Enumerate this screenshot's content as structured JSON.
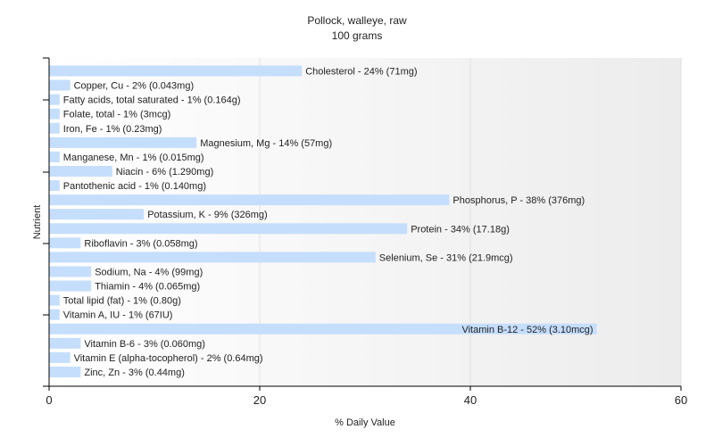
{
  "chart_data": {
    "type": "bar",
    "orientation": "horizontal",
    "title": "Pollock, walleye, raw",
    "subtitle": "100 grams",
    "xlabel": "% Daily Value",
    "ylabel": "Nutrient",
    "xlim": [
      0,
      60
    ],
    "xticks": [
      "0",
      "20",
      "40",
      "60"
    ],
    "grid": true,
    "bar_color": "#c5defc",
    "categories": [
      "Cholesterol",
      "Copper, Cu",
      "Fatty acids, total saturated",
      "Folate, total",
      "Iron, Fe",
      "Magnesium, Mg",
      "Manganese, Mn",
      "Niacin",
      "Pantothenic acid",
      "Phosphorus, P",
      "Potassium, K",
      "Protein",
      "Riboflavin",
      "Selenium, Se",
      "Sodium, Na",
      "Thiamin",
      "Total lipid (fat)",
      "Vitamin A, IU",
      "Vitamin B-12",
      "Vitamin B-6",
      "Vitamin E (alpha-tocopherol)",
      "Zinc, Zn"
    ],
    "values": [
      24,
      2,
      1,
      1,
      1,
      14,
      1,
      6,
      1,
      38,
      9,
      34,
      3,
      31,
      4,
      4,
      1,
      1,
      52,
      3,
      2,
      3
    ],
    "labels": [
      "Cholesterol - 24% (71mg)",
      "Copper, Cu - 2% (0.043mg)",
      "Fatty acids, total saturated - 1% (0.164g)",
      "Folate, total - 1% (3mcg)",
      "Iron, Fe - 1% (0.23mg)",
      "Magnesium, Mg - 14% (57mg)",
      "Manganese, Mn - 1% (0.015mg)",
      "Niacin - 6% (1.290mg)",
      "Pantothenic acid - 1% (0.140mg)",
      "Phosphorus, P - 38% (376mg)",
      "Potassium, K - 9% (326mg)",
      "Protein - 34% (17.18g)",
      "Riboflavin - 3% (0.058mg)",
      "Selenium, Se - 31% (21.9mcg)",
      "Sodium, Na - 4% (99mg)",
      "Thiamin - 4% (0.065mg)",
      "Total lipid (fat) - 1% (0.80g)",
      "Vitamin A, IU - 1% (67IU)",
      "Vitamin B-12 - 52% (3.10mcg)",
      "Vitamin B-6 - 3% (0.060mg)",
      "Vitamin E (alpha-tocopherol) - 2% (0.64mg)",
      "Zinc, Zn - 3% (0.44mg)"
    ]
  }
}
